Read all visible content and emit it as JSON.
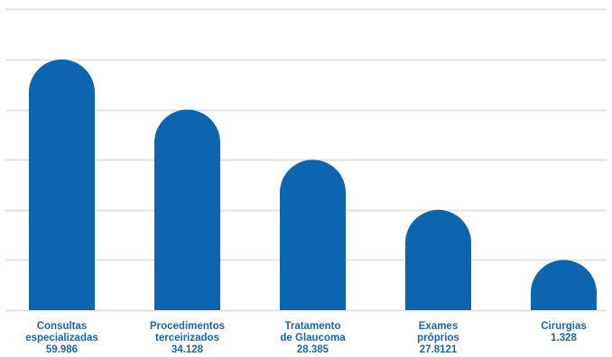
{
  "chart_data": {
    "type": "bar",
    "title": "",
    "xlabel": "",
    "ylabel": "",
    "grid": true,
    "bar_style": "rounded-top",
    "bar_color": "#0c65ae",
    "grid_color": "#e3e3e3",
    "label_color": "#1766b0",
    "categories": [
      {
        "lines": [
          "Consultas",
          "especializadas",
          "59.986"
        ]
      },
      {
        "lines": [
          "Procedimentos",
          "terceirizados",
          "34.128"
        ]
      },
      {
        "lines": [
          "Tratamento",
          "de Glaucoma",
          "28.385"
        ]
      },
      {
        "lines": [
          "Exames",
          "próprios",
          "27.8121"
        ]
      },
      {
        "lines": [
          "Cirurgias",
          "1.328"
        ]
      }
    ],
    "values": [
      5,
      4,
      3,
      2,
      1
    ],
    "ylim": [
      0,
      6
    ]
  }
}
